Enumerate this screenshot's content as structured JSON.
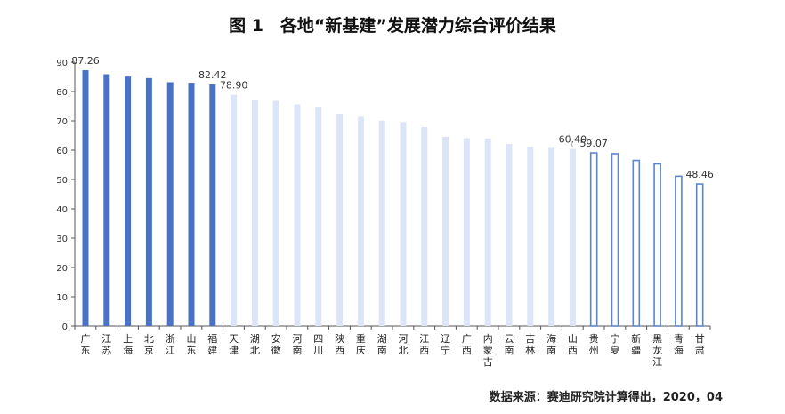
{
  "title": "图 1　各地“新基建”发展潜力综合评价结果",
  "source": "数据来源：赛迪研究院计算得出，2020，04",
  "chart_data": {
    "type": "bar",
    "title": "图 1　各地“新基建”发展潜力综合评价结果",
    "xlabel": "",
    "ylabel": "",
    "ylim": [
      0,
      90
    ],
    "yticks": [
      0,
      10,
      20,
      30,
      40,
      50,
      60,
      70,
      80,
      90
    ],
    "grid": false,
    "categories": [
      "广东",
      "江苏",
      "上海",
      "北京",
      "浙江",
      "山东",
      "福建",
      "天津",
      "湖北",
      "安徽",
      "河南",
      "四川",
      "陕西",
      "重庆",
      "湖南",
      "河北",
      "江西",
      "辽宁",
      "广西",
      "内蒙古",
      "云南",
      "吉林",
      "海南",
      "山西",
      "贵州",
      "宁夏",
      "新疆",
      "黑龙江",
      "青海",
      "甘肃"
    ],
    "values": [
      87.26,
      85.9,
      85.1,
      84.6,
      83.2,
      83.0,
      82.42,
      78.9,
      77.3,
      76.8,
      75.6,
      74.8,
      72.4,
      71.4,
      70.1,
      69.6,
      67.9,
      64.6,
      64.1,
      64.0,
      62.1,
      61.1,
      60.8,
      60.4,
      59.07,
      58.8,
      56.5,
      55.3,
      51.1,
      48.46
    ],
    "tiers": [
      "strong",
      "strong",
      "strong",
      "strong",
      "strong",
      "strong",
      "strong",
      "mid",
      "mid",
      "mid",
      "mid",
      "mid",
      "mid",
      "mid",
      "mid",
      "mid",
      "mid",
      "mid",
      "mid",
      "mid",
      "mid",
      "mid",
      "mid",
      "mid",
      "weak",
      "weak",
      "weak",
      "weak",
      "weak",
      "weak"
    ],
    "value_labels": [
      {
        "index": 0,
        "text": "87.26"
      },
      {
        "index": 6,
        "text": "82.42"
      },
      {
        "index": 7,
        "text": "78.90"
      },
      {
        "index": 23,
        "text": "60.40"
      },
      {
        "index": 24,
        "text": "59.07"
      },
      {
        "index": 29,
        "text": "48.46"
      }
    ],
    "colors": {
      "strong": "#4a72c4",
      "mid": "#dbe5f7",
      "weak_fill": "#ffffff",
      "weak_stroke": "#5b86cc",
      "axis": "#555555"
    }
  }
}
